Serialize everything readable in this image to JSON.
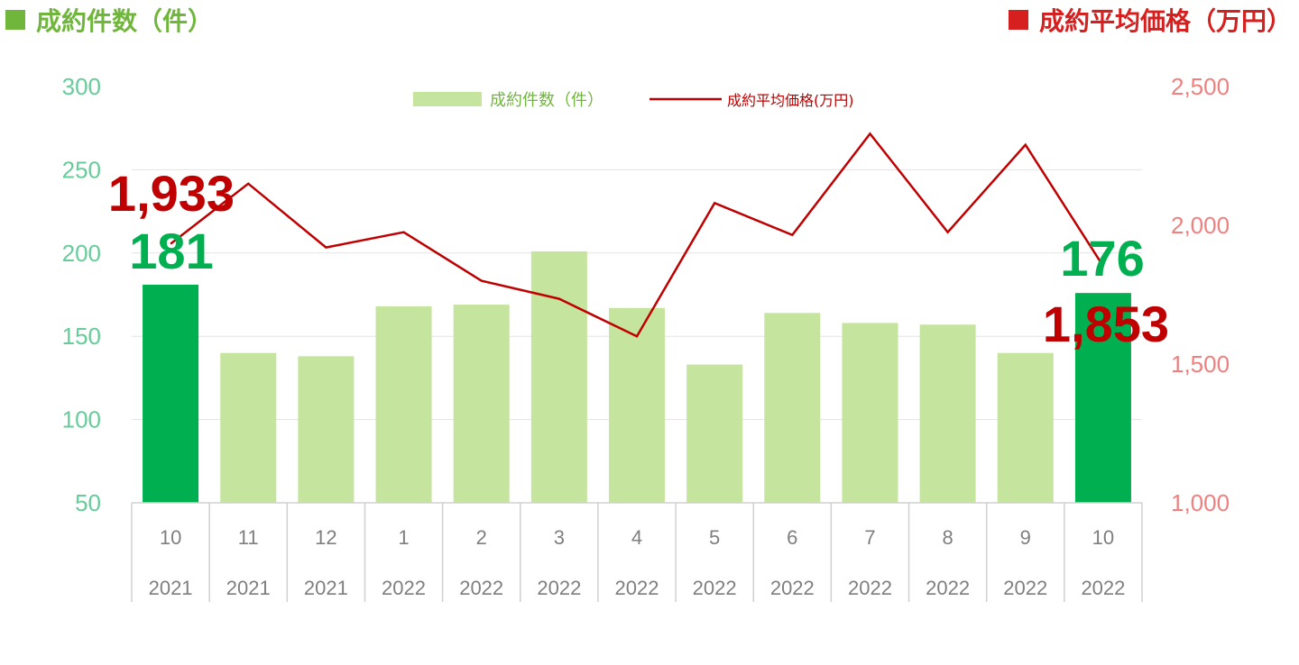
{
  "titles": {
    "left": "成約件数（件）",
    "right": "成約平均価格（万円）"
  },
  "colors": {
    "bar": "#c5e49e",
    "bar_highlight": "#00b050",
    "line": "#c00000",
    "left_axis": "#66cc99",
    "right_axis": "#f08080",
    "left_title": "#70b63c",
    "right_title": "#d62020",
    "count_annotation": "#00b050",
    "price_annotation": "#c00000"
  },
  "chart_data": {
    "type": "bar",
    "categories": [
      "10",
      "11",
      "12",
      "1",
      "2",
      "3",
      "4",
      "5",
      "6",
      "7",
      "8",
      "9",
      "10"
    ],
    "years": [
      "2021",
      "2021",
      "2021",
      "2022",
      "2022",
      "2022",
      "2022",
      "2022",
      "2022",
      "2022",
      "2022",
      "2022",
      "2022"
    ],
    "highlight_indices": [
      0,
      12
    ],
    "series": [
      {
        "name": "成約件数（件）",
        "type": "bar",
        "axis": "left",
        "values": [
          181,
          140,
          138,
          168,
          169,
          201,
          167,
          133,
          164,
          158,
          157,
          140,
          176
        ]
      },
      {
        "name": "成約平均価格(万円)",
        "type": "line",
        "axis": "right",
        "values": [
          1933,
          2150,
          1920,
          1975,
          1800,
          1735,
          1600,
          2080,
          1965,
          2330,
          1975,
          2290,
          1853
        ]
      }
    ],
    "y_left": {
      "ylim": [
        50,
        300
      ],
      "ticks": [
        "50",
        "100",
        "150",
        "200",
        "250",
        "300"
      ]
    },
    "y_right": {
      "ylim": [
        1000,
        2500
      ],
      "ticks": [
        "1,000",
        "1,500",
        "2,000",
        "2,500"
      ]
    },
    "grid": true,
    "legend": "top-center",
    "annotations": [
      {
        "label": "1,933",
        "index": 0,
        "kind": "price"
      },
      {
        "label": "181",
        "index": 0,
        "kind": "count"
      },
      {
        "label": "176",
        "index": 12,
        "kind": "count"
      },
      {
        "label": "1,853",
        "index": 12,
        "kind": "price"
      }
    ]
  }
}
